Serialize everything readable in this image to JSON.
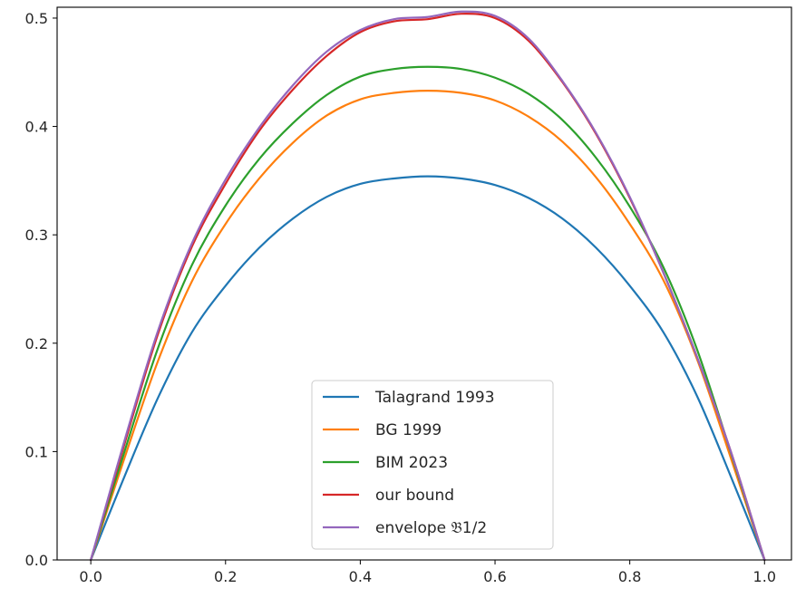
{
  "chart_data": {
    "type": "line",
    "title": "",
    "xlabel": "",
    "ylabel": "",
    "xlim": [
      -0.05,
      1.04
    ],
    "ylim": [
      0,
      0.51
    ],
    "x_ticks": [
      0.0,
      0.2,
      0.4,
      0.6,
      0.8,
      1.0
    ],
    "x_tick_labels": [
      "0.0",
      "0.2",
      "0.4",
      "0.6",
      "0.8",
      "1.0"
    ],
    "y_ticks": [
      0.0,
      0.1,
      0.2,
      0.3,
      0.4,
      0.5
    ],
    "y_tick_labels": [
      "0.0",
      "0.1",
      "0.2",
      "0.3",
      "0.4",
      "0.5"
    ],
    "grid": false,
    "legend_position": "lower center",
    "x": [
      0.0,
      0.05,
      0.1,
      0.15,
      0.2,
      0.25,
      0.3,
      0.35,
      0.4,
      0.45,
      0.5,
      0.55,
      0.6,
      0.65,
      0.7,
      0.75,
      0.8,
      0.85,
      0.9,
      0.95,
      1.0
    ],
    "series": [
      {
        "name": "Talagrand 1993",
        "color": "#1f77b4",
        "values": [
          0.0,
          0.077,
          0.15,
          0.21,
          0.253,
          0.288,
          0.315,
          0.335,
          0.347,
          0.352,
          0.354,
          0.352,
          0.346,
          0.334,
          0.315,
          0.288,
          0.253,
          0.21,
          0.151,
          0.077,
          0.0
        ]
      },
      {
        "name": "BG 1999",
        "color": "#ff7f0e",
        "values": [
          0.0,
          0.094,
          0.184,
          0.257,
          0.31,
          0.352,
          0.385,
          0.41,
          0.425,
          0.431,
          0.433,
          0.431,
          0.424,
          0.409,
          0.386,
          0.353,
          0.31,
          0.258,
          0.185,
          0.094,
          0.0
        ]
      },
      {
        "name": "BIM 2023",
        "color": "#2ca02c",
        "values": [
          0.0,
          0.1,
          0.196,
          0.272,
          0.327,
          0.37,
          0.403,
          0.429,
          0.446,
          0.453,
          0.455,
          0.453,
          0.445,
          0.43,
          0.406,
          0.371,
          0.326,
          0.27,
          0.194,
          0.099,
          0.0
        ]
      },
      {
        "name": "our bound",
        "color": "#d62728",
        "values": [
          0.0,
          0.107,
          0.209,
          0.289,
          0.347,
          0.396,
          0.434,
          0.465,
          0.487,
          0.497,
          0.499,
          0.504,
          0.5,
          0.479,
          0.441,
          0.393,
          0.334,
          0.265,
          0.187,
          0.1,
          0.0
        ]
      },
      {
        "name": "envelope 𝔅1/2",
        "color": "#9467bd",
        "values": [
          0.0,
          0.11,
          0.212,
          0.292,
          0.351,
          0.399,
          0.438,
          0.469,
          0.489,
          0.499,
          0.501,
          0.506,
          0.502,
          0.481,
          0.442,
          0.394,
          0.335,
          0.265,
          0.187,
          0.1,
          0.0
        ]
      }
    ]
  }
}
